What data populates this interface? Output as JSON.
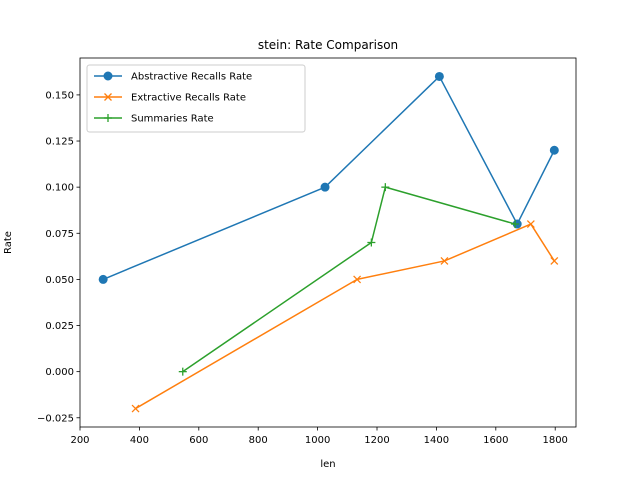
{
  "chart_data": {
    "type": "line",
    "title": "stein: Rate Comparison",
    "xlabel": "len",
    "ylabel": "Rate",
    "xlim": [
      200,
      1870
    ],
    "ylim": [
      -0.03,
      0.17
    ],
    "x_ticks": [
      200,
      400,
      600,
      800,
      1000,
      1200,
      1400,
      1600,
      1800
    ],
    "y_ticks": [
      -0.025,
      0.0,
      0.025,
      0.05,
      0.075,
      0.1,
      0.125,
      0.15
    ],
    "x_tick_labels": [
      "200",
      "400",
      "600",
      "800",
      "1000",
      "1200",
      "1400",
      "1600",
      "1800"
    ],
    "y_tick_labels": [
      "−0.025",
      "0.000",
      "0.025",
      "0.050",
      "0.075",
      "0.100",
      "0.125",
      "0.150"
    ],
    "grid": false,
    "legend_position": "top-left",
    "series": [
      {
        "name": "Abstractive Recalls Rate",
        "color": "#1f77b4",
        "marker": "circle",
        "points": [
          [
            278,
            0.05
          ],
          [
            1025,
            0.1
          ],
          [
            1410,
            0.16
          ],
          [
            1672,
            0.08
          ],
          [
            1797,
            0.12
          ]
        ]
      },
      {
        "name": "Extractive Recalls Rate",
        "color": "#ff7f0e",
        "marker": "x",
        "points": [
          [
            387,
            -0.02
          ],
          [
            1133,
            0.05
          ],
          [
            1427,
            0.06
          ],
          [
            1718,
            0.08
          ],
          [
            1797,
            0.06
          ]
        ]
      },
      {
        "name": "Summaries Rate",
        "color": "#2ca02c",
        "marker": "plus",
        "points": [
          [
            546,
            0.0
          ],
          [
            1181,
            0.07
          ],
          [
            1228,
            0.1
          ],
          [
            1665,
            0.08
          ]
        ]
      }
    ]
  }
}
